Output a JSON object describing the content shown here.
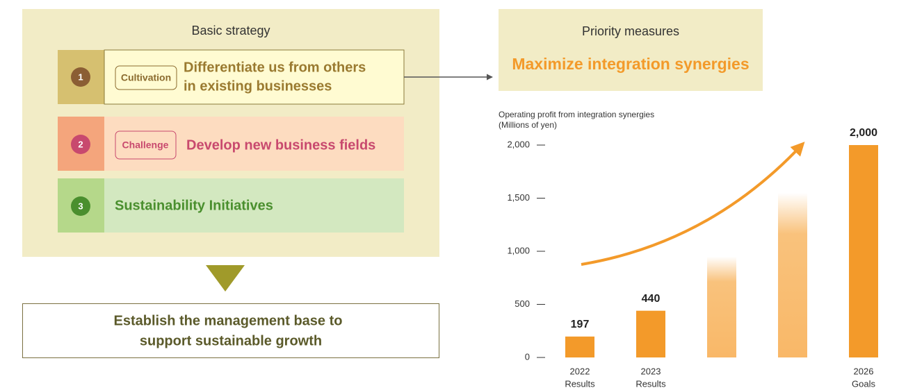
{
  "strategy": {
    "title": "Basic strategy",
    "items": [
      {
        "number": "1",
        "tag": "Cultivation",
        "lines": [
          "Differentiate us from others",
          "in existing businesses"
        ]
      },
      {
        "number": "2",
        "tag": "Challenge",
        "lines": [
          "Develop new business fields"
        ]
      },
      {
        "number": "3",
        "lines": [
          "Sustainability Initiatives"
        ]
      }
    ],
    "result_lines": [
      "Establish the management base to",
      "support sustainable growth"
    ]
  },
  "priority": {
    "title": "Priority measures",
    "headline": "Maximize integration synergies"
  },
  "chart_data": {
    "type": "bar",
    "title_lines": [
      "Operating profit from integration synergies",
      "(Millions of yen)"
    ],
    "categories": [
      "2022",
      "2023",
      null,
      null,
      "2026"
    ],
    "category_sublabels": [
      "Results",
      "Results",
      null,
      null,
      "Goals"
    ],
    "values": [
      197,
      440,
      950,
      1550,
      2000
    ],
    "value_labels": [
      "197",
      "440",
      null,
      null,
      "2,000"
    ],
    "color": "#f39a2a",
    "ylim": [
      0,
      2000
    ],
    "yticks": [
      0,
      500,
      {
        "value": 1000,
        "label": "1,000"
      },
      {
        "value": 1500,
        "label": "1,500"
      },
      {
        "value": 2000,
        "label": "2,000"
      }
    ]
  }
}
